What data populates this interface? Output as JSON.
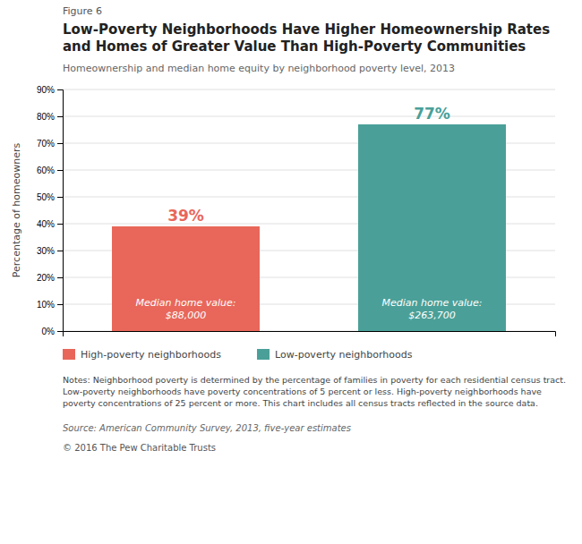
{
  "chart_data": {
    "type": "bar",
    "figure_label": "Figure 6",
    "title": "Low-Poverty Neighborhoods Have Higher Homeownership Rates\nand Homes of Greater Value Than High-Poverty Communities",
    "subtitle": "Homeownership and median home equity by neighborhood poverty level, 2013",
    "categories": [
      "High-poverty neighborhoods",
      "Low-poverty neighborhoods"
    ],
    "values": [
      39,
      77
    ],
    "value_labels": [
      "39%",
      "77%"
    ],
    "data_labels": true,
    "colors": [
      "#E8675A",
      "#4AA098"
    ],
    "bar_annotations": [
      "Median home value:\n$88,000",
      "Median home value:\n$263,700"
    ],
    "ylabel": "Percentage of homeowners",
    "ylim": [
      0,
      90
    ],
    "yticks": [
      {
        "value": 0,
        "label": "0%"
      },
      {
        "value": 10,
        "label": "10%"
      },
      {
        "value": 20,
        "label": "20%"
      },
      {
        "value": 30,
        "label": "30%"
      },
      {
        "value": 40,
        "label": "40%"
      },
      {
        "value": 50,
        "label": "50%"
      },
      {
        "value": 60,
        "label": "60%"
      },
      {
        "value": 70,
        "label": "70%"
      },
      {
        "value": 80,
        "label": "80%"
      },
      {
        "value": 90,
        "label": "90%"
      }
    ],
    "grid": true,
    "legend": "bottom",
    "tick_labels": "y",
    "notes": "Notes: Neighborhood poverty is determined by the percentage of families in poverty for each residential census tract. Low-poverty\nneighborhoods have poverty concentrations of 5 percent or less. High-poverty neighborhoods have poverty concentrations of 25 percent or\nmore. This chart includes all census tracts reflected in the source data.",
    "source": "Source: American Community Survey, 2013, five-year estimates",
    "copyright": "© 2016 The Pew Charitable Trusts"
  }
}
